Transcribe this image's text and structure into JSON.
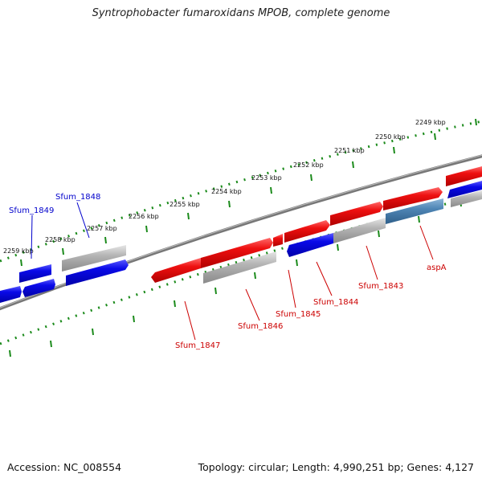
{
  "title": "Syntrophobacter fumaroxidans MPOB, complete genome",
  "footer": {
    "accession": "Accession: NC_008554",
    "summary": "Topology: circular; Length: 4,990,251 bp; Genes: 4,127"
  },
  "colors": {
    "forward_gene": "#e00000",
    "reverse_gene": "#0000dd",
    "other_gene": "#a8a8a8",
    "selected_gene": "#4f86b5",
    "tick": "#1a8a1a",
    "backbone": "#777777",
    "red_label": "#cc0000",
    "blue_label": "#0000cc"
  },
  "scale_labels": [
    "2249 kbp",
    "2250 kbp",
    "2251 kbp",
    "2252 kbp",
    "2253 kbp",
    "2254 kbp",
    "2255 kbp",
    "2256 kbp",
    "2257 kbp",
    "2258 kbp",
    "2259 kbp"
  ],
  "gene_labels": [
    {
      "text": "Sfum_1849",
      "color": "blue"
    },
    {
      "text": "Sfum_1848",
      "color": "blue"
    },
    {
      "text": "Sfum_1847",
      "color": "red"
    },
    {
      "text": "Sfum_1846",
      "color": "red"
    },
    {
      "text": "Sfum_1845",
      "color": "red"
    },
    {
      "text": "Sfum_1844",
      "color": "red"
    },
    {
      "text": "Sfum_1843",
      "color": "red"
    },
    {
      "text": "aspA",
      "color": "red"
    }
  ]
}
